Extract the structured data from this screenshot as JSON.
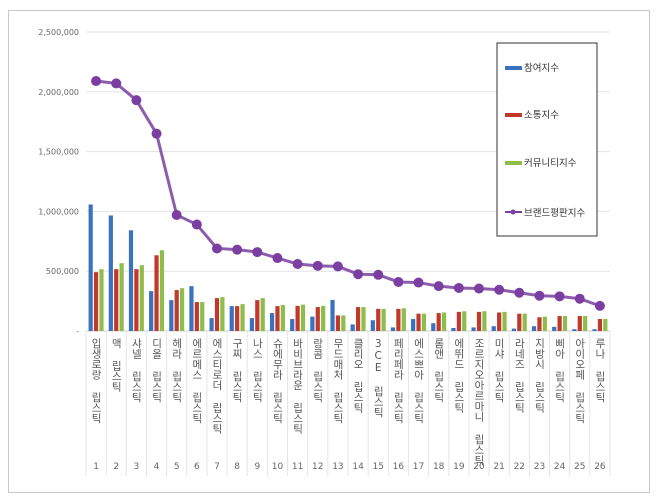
{
  "chart_data": {
    "type": "bar",
    "categories": [
      "입생로랑 립스틱",
      "맥 립스틱",
      "샤넬 립스틱",
      "디올 립스틱",
      "헤라 립스틱",
      "에르메스 립스틱",
      "에스티로더 립스틱",
      "구찌 립스틱",
      "나스 립스틱",
      "슈에무라 립스틱",
      "바비브라운 립스틱",
      "랑콤 립스틱",
      "무드매처 립스틱",
      "클리오 립스틱",
      "3CE 립스틱",
      "페리페라 립스틱",
      "에스쁘아 립스틱",
      "롬앤 립스틱",
      "에뛰드 립스틱",
      "조르지오아르마니 립스틱",
      "미샤 립스틱",
      "라네즈 립스틱",
      "지방시 립스틱",
      "삐아 립스틱",
      "아이오페 립스틱",
      "루나 립스틱"
    ],
    "ranks": [
      "1",
      "2",
      "3",
      "4",
      "5",
      "6",
      "7",
      "8",
      "9",
      "10",
      "11",
      "12",
      "13",
      "14",
      "15",
      "16",
      "17",
      "18",
      "19",
      "20",
      "21",
      "22",
      "23",
      "24",
      "25",
      "26"
    ],
    "series": [
      {
        "name": "참여지수",
        "type": "bar",
        "color": "#3b72c0",
        "values": [
          1058000,
          966000,
          842000,
          333000,
          258000,
          375000,
          108000,
          208000,
          108000,
          150000,
          100000,
          120000,
          260000,
          55000,
          90000,
          30000,
          100000,
          65000,
          25000,
          30000,
          40000,
          20000,
          40000,
          35000,
          15000,
          15000
        ]
      },
      {
        "name": "소통지수",
        "type": "bar",
        "color": "#c0392b",
        "values": [
          492000,
          517000,
          517000,
          633000,
          342000,
          242000,
          275000,
          208000,
          258000,
          208000,
          210000,
          200000,
          130000,
          200000,
          185000,
          185000,
          145000,
          150000,
          160000,
          160000,
          155000,
          145000,
          115000,
          125000,
          125000,
          100000
        ]
      },
      {
        "name": "커뮤니티지수",
        "type": "bar",
        "color": "#8fbc4a",
        "values": [
          517000,
          567000,
          550000,
          675000,
          358000,
          242000,
          283000,
          225000,
          275000,
          217000,
          220000,
          210000,
          130000,
          200000,
          185000,
          190000,
          145000,
          155000,
          165000,
          165000,
          160000,
          145000,
          120000,
          125000,
          125000,
          100000
        ]
      },
      {
        "name": "브랜드평판지수",
        "type": "line",
        "color": "#7a3fa0",
        "values": [
          2090000,
          2070000,
          1930000,
          1650000,
          970000,
          890000,
          690000,
          680000,
          660000,
          610000,
          560000,
          545000,
          540000,
          475000,
          470000,
          410000,
          405000,
          375000,
          360000,
          355000,
          345000,
          320000,
          295000,
          290000,
          270000,
          210000
        ]
      }
    ],
    "yticks": [
      "-",
      "500,000",
      "1,000,000",
      "1,500,000",
      "2,000,000",
      "2,500,000"
    ],
    "ylim": [
      0,
      2500000
    ],
    "grid": true,
    "legend": "top-right"
  }
}
